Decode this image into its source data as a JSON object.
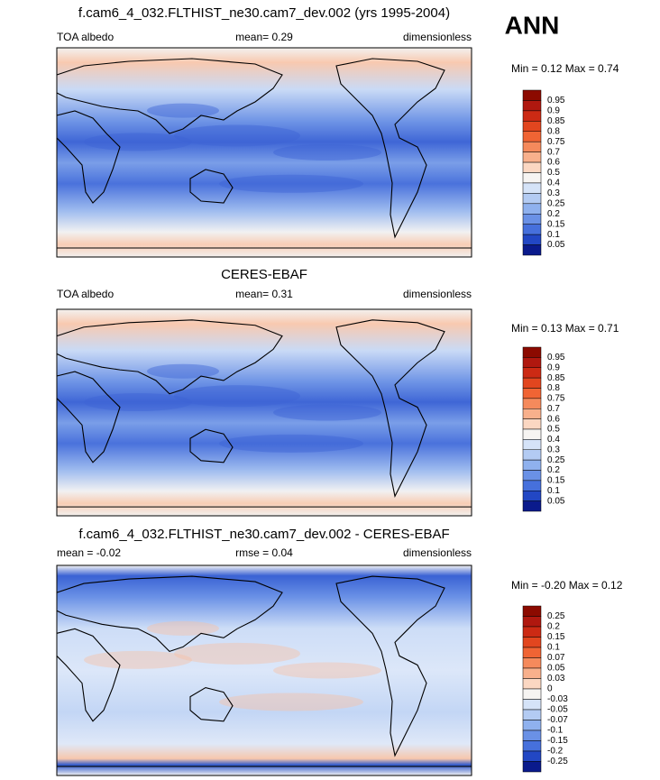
{
  "header": {
    "season": "ANN"
  },
  "panels": [
    {
      "title": "f.cam6_4_032.FLTHIST_ne30.cam7_dev.002 (yrs 1995-2004)",
      "left": "TOA albedo",
      "center": "mean=  0.29",
      "right": "dimensionless",
      "range": "Min =  0.12 Max =   0.74",
      "colorbar": {
        "levels": [
          0.95,
          0.9,
          0.85,
          0.8,
          0.75,
          0.7,
          0.6,
          0.5,
          0.4,
          0.3,
          0.25,
          0.2,
          0.15,
          0.1,
          0.05
        ],
        "colors": [
          "#8c0a00",
          "#b0180f",
          "#cc2a14",
          "#e2461f",
          "#f06434",
          "#f58a5c",
          "#f8b08c",
          "#fbd7c2",
          "#f6f4f2",
          "#d5e3f8",
          "#b3cbf3",
          "#8fb1ee",
          "#6a91e6",
          "#4670dc",
          "#2247c4",
          "#0a1a8c"
        ]
      }
    },
    {
      "title": "CERES-EBAF",
      "left": "TOA albedo",
      "center": "mean=  0.31",
      "right": "dimensionless",
      "range": "Min =  0.13 Max =   0.71",
      "colorbar": {
        "levels": [
          0.95,
          0.9,
          0.85,
          0.8,
          0.75,
          0.7,
          0.6,
          0.5,
          0.4,
          0.3,
          0.25,
          0.2,
          0.15,
          0.1,
          0.05
        ],
        "colors": [
          "#8c0a00",
          "#b0180f",
          "#cc2a14",
          "#e2461f",
          "#f06434",
          "#f58a5c",
          "#f8b08c",
          "#fbd7c2",
          "#f6f4f2",
          "#d5e3f8",
          "#b3cbf3",
          "#8fb1ee",
          "#6a91e6",
          "#4670dc",
          "#2247c4",
          "#0a1a8c"
        ]
      }
    },
    {
      "title": "f.cam6_4_032.FLTHIST_ne30.cam7_dev.002 - CERES-EBAF",
      "left": "mean =  -0.02",
      "center": "rmse =  0.04",
      "right": "dimensionless",
      "range": "Min =  -0.20 Max =   0.12",
      "colorbar": {
        "levels": [
          0.25,
          0.2,
          0.15,
          0.1,
          0.07,
          0.05,
          0.03,
          0,
          -0.03,
          -0.05,
          -0.07,
          -0.1,
          -0.15,
          -0.2,
          -0.25
        ],
        "colors": [
          "#8c0a00",
          "#b0180f",
          "#cc2a14",
          "#e2461f",
          "#f06434",
          "#f58a5c",
          "#f8b08c",
          "#fbd7c2",
          "#f6f4f2",
          "#d5e3f8",
          "#b3cbf3",
          "#8fb1ee",
          "#6a91e6",
          "#4670dc",
          "#2247c4",
          "#0a1a8c"
        ]
      }
    }
  ]
}
